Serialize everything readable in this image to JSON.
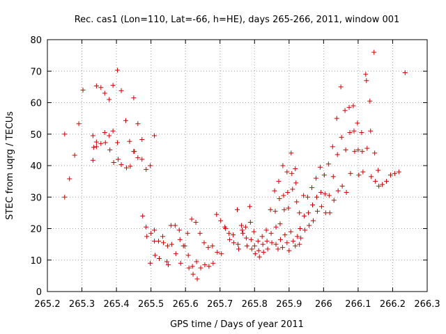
{
  "chart_data": {
    "type": "scatter",
    "title": "Rec. cas1 (Lon=110, Lat=-66, h=HE), days 265-266, 2011, window 001",
    "xlabel": "GPS time / Days of year 2011",
    "ylabel": "STEC from uqrg / TECUs",
    "xlim": [
      265.2,
      266.3
    ],
    "ylim": [
      0,
      80
    ],
    "xticks": [
      265.2,
      265.3,
      265.4,
      265.5,
      265.6,
      265.7,
      265.8,
      265.9,
      266.0,
      266.1,
      266.2,
      266.3
    ],
    "xtick_labels": [
      "265.2",
      "265.3",
      "265.4",
      "265.5",
      "265.6",
      "265.7",
      "265.8",
      "265.9",
      "266",
      "266.1",
      "266.2",
      "266.3"
    ],
    "yticks": [
      0,
      10,
      20,
      30,
      40,
      50,
      60,
      70,
      80
    ],
    "ytick_labels": [
      "0",
      "10",
      "20",
      "30",
      "40",
      "50",
      "60",
      "70",
      "80"
    ],
    "grid": true,
    "marker": "+",
    "color": "#cc0000",
    "points": [
      [
        265.25,
        50.0
      ],
      [
        265.25,
        30.0
      ],
      [
        265.264,
        35.8
      ],
      [
        265.279,
        43.3
      ],
      [
        265.291,
        53.3
      ],
      [
        265.303,
        64.0
      ],
      [
        265.332,
        49.5
      ],
      [
        265.332,
        41.7
      ],
      [
        265.334,
        45.8
      ],
      [
        265.342,
        65.3
      ],
      [
        265.342,
        47.5
      ],
      [
        265.342,
        46.0
      ],
      [
        265.355,
        64.8
      ],
      [
        265.355,
        47.0
      ],
      [
        265.366,
        63.0
      ],
      [
        265.366,
        50.5
      ],
      [
        265.368,
        47.3
      ],
      [
        265.379,
        61.0
      ],
      [
        265.379,
        49.5
      ],
      [
        265.381,
        45.0
      ],
      [
        265.39,
        65.5
      ],
      [
        265.39,
        51.0
      ],
      [
        265.392,
        41.0
      ],
      [
        265.403,
        70.3
      ],
      [
        265.403,
        47.3
      ],
      [
        265.405,
        42.0
      ],
      [
        265.414,
        63.8
      ],
      [
        265.414,
        40.3
      ],
      [
        265.427,
        54.3
      ],
      [
        265.429,
        39.3
      ],
      [
        265.438,
        47.7
      ],
      [
        265.44,
        39.8
      ],
      [
        265.45,
        61.5
      ],
      [
        265.45,
        44.5
      ],
      [
        265.452,
        44.5
      ],
      [
        265.462,
        53.3
      ],
      [
        265.462,
        42.5
      ],
      [
        265.474,
        48.3
      ],
      [
        265.474,
        42.0
      ],
      [
        265.476,
        24.0
      ],
      [
        265.486,
        38.8
      ],
      [
        265.486,
        20.5
      ],
      [
        265.488,
        17.5
      ],
      [
        265.498,
        40.0
      ],
      [
        265.498,
        9.0
      ],
      [
        265.5,
        18.5
      ],
      [
        265.51,
        49.5
      ],
      [
        265.51,
        19.5
      ],
      [
        265.51,
        16.0
      ],
      [
        265.512,
        11.5
      ],
      [
        265.522,
        16.0
      ],
      [
        265.524,
        10.5
      ],
      [
        265.534,
        17.5
      ],
      [
        265.536,
        15.5
      ],
      [
        265.546,
        9.5
      ],
      [
        265.548,
        14.5
      ],
      [
        265.55,
        8.5
      ],
      [
        265.558,
        21.0
      ],
      [
        265.56,
        15.0
      ],
      [
        265.57,
        21.0
      ],
      [
        265.572,
        12.0
      ],
      [
        265.582,
        19.5
      ],
      [
        265.584,
        16.5
      ],
      [
        265.586,
        9.0
      ],
      [
        265.594,
        14.5
      ],
      [
        265.598,
        14.5
      ],
      [
        265.606,
        18.5
      ],
      [
        265.608,
        11.5
      ],
      [
        265.61,
        7.5
      ],
      [
        265.618,
        23.0
      ],
      [
        265.62,
        8.0
      ],
      [
        265.622,
        5.5
      ],
      [
        265.63,
        22.0
      ],
      [
        265.632,
        9.5
      ],
      [
        265.634,
        4.0
      ],
      [
        265.642,
        18.5
      ],
      [
        265.644,
        7.5
      ],
      [
        265.654,
        15.5
      ],
      [
        265.656,
        8.5
      ],
      [
        265.666,
        14.0
      ],
      [
        265.668,
        8.0
      ],
      [
        265.678,
        14.5
      ],
      [
        265.68,
        9.0
      ],
      [
        265.69,
        24.5
      ],
      [
        265.692,
        12.5
      ],
      [
        265.702,
        22.5
      ],
      [
        265.704,
        12.0
      ],
      [
        265.714,
        20.5
      ],
      [
        265.716,
        20.0
      ],
      [
        265.726,
        18.5
      ],
      [
        265.728,
        16.5
      ],
      [
        265.738,
        18.0
      ],
      [
        265.74,
        15.5
      ],
      [
        265.75,
        26.0
      ],
      [
        265.752,
        15.0
      ],
      [
        265.754,
        13.5
      ],
      [
        265.762,
        21.0
      ],
      [
        265.764,
        19.5
      ],
      [
        265.766,
        18.5
      ],
      [
        265.774,
        20.5
      ],
      [
        265.776,
        17.0
      ],
      [
        265.778,
        14.5
      ],
      [
        265.786,
        27.0
      ],
      [
        265.788,
        22.0
      ],
      [
        265.79,
        16.5
      ],
      [
        265.792,
        13.5
      ],
      [
        265.798,
        19.0
      ],
      [
        265.8,
        14.5
      ],
      [
        265.802,
        12.0
      ],
      [
        265.81,
        16.0
      ],
      [
        265.812,
        13.0
      ],
      [
        265.814,
        11.0
      ],
      [
        265.822,
        17.5
      ],
      [
        265.824,
        15.0
      ],
      [
        265.826,
        12.5
      ],
      [
        265.834,
        19.5
      ],
      [
        265.836,
        16.0
      ],
      [
        265.838,
        13.5
      ],
      [
        265.846,
        26.0
      ],
      [
        265.848,
        18.5
      ],
      [
        265.85,
        15.5
      ],
      [
        265.858,
        32.0
      ],
      [
        265.86,
        25.5
      ],
      [
        265.862,
        20.5
      ],
      [
        265.87,
        35.0
      ],
      [
        265.872,
        29.5
      ],
      [
        265.874,
        21.5
      ],
      [
        265.882,
        40.0
      ],
      [
        265.884,
        30.5
      ],
      [
        265.886,
        26.0
      ],
      [
        265.894,
        38.0
      ],
      [
        265.896,
        31.5
      ],
      [
        265.898,
        26.5
      ],
      [
        265.906,
        44.0
      ],
      [
        265.908,
        37.5
      ],
      [
        265.91,
        32.5
      ],
      [
        265.918,
        39.0
      ],
      [
        265.92,
        34.5
      ],
      [
        265.922,
        28.5
      ],
      [
        265.93,
        25.0
      ],
      [
        265.932,
        20.0
      ],
      [
        265.934,
        17.0
      ],
      [
        265.942,
        30.5
      ],
      [
        265.944,
        24.0
      ],
      [
        265.946,
        19.5
      ],
      [
        265.954,
        30.0
      ],
      [
        265.956,
        25.0
      ],
      [
        265.958,
        21.0
      ],
      [
        265.966,
        33.0
      ],
      [
        265.968,
        27.5
      ],
      [
        265.97,
        22.5
      ],
      [
        265.978,
        36.0
      ],
      [
        265.98,
        30.0
      ],
      [
        265.982,
        25.5
      ],
      [
        265.99,
        39.5
      ],
      [
        265.992,
        31.5
      ],
      [
        265.994,
        27.0
      ],
      [
        266.002,
        37.0
      ],
      [
        266.004,
        31.0
      ],
      [
        266.006,
        25.0
      ],
      [
        266.014,
        40.5
      ],
      [
        266.016,
        30.5
      ],
      [
        266.018,
        25.0
      ],
      [
        266.026,
        46.0
      ],
      [
        266.028,
        36.5
      ],
      [
        266.03,
        29.0
      ],
      [
        266.038,
        55.0
      ],
      [
        266.04,
        43.5
      ],
      [
        266.042,
        32.0
      ],
      [
        266.05,
        65.0
      ],
      [
        266.052,
        49.0
      ],
      [
        266.054,
        33.5
      ],
      [
        266.062,
        57.5
      ],
      [
        266.064,
        45.0
      ],
      [
        266.066,
        31.5
      ],
      [
        266.074,
        58.5
      ],
      [
        266.076,
        50.5
      ],
      [
        266.078,
        37.5
      ],
      [
        266.086,
        59.0
      ],
      [
        266.088,
        51.0
      ],
      [
        266.09,
        44.5
      ],
      [
        266.098,
        53.5
      ],
      [
        266.1,
        45.0
      ],
      [
        266.102,
        37.0
      ],
      [
        266.11,
        50.5
      ],
      [
        266.112,
        44.5
      ],
      [
        266.114,
        38.0
      ],
      [
        266.122,
        69.0
      ],
      [
        266.124,
        67.0
      ],
      [
        266.126,
        45.5
      ],
      [
        266.134,
        60.5
      ],
      [
        266.136,
        51.0
      ],
      [
        266.138,
        36.5
      ],
      [
        266.146,
        76.0
      ],
      [
        266.148,
        44.0
      ],
      [
        266.15,
        35.0
      ],
      [
        266.158,
        38.5
      ],
      [
        266.16,
        33.5
      ],
      [
        266.17,
        34.0
      ],
      [
        266.182,
        35.0
      ],
      [
        266.194,
        37.0
      ],
      [
        266.206,
        37.5
      ],
      [
        266.218,
        38.0
      ],
      [
        266.236,
        69.5
      ],
      [
        265.862,
        15.0
      ],
      [
        265.868,
        13.5
      ],
      [
        265.875,
        16.5
      ],
      [
        265.881,
        14.0
      ],
      [
        265.888,
        18.0
      ],
      [
        265.894,
        15.5
      ],
      [
        265.9,
        13.0
      ],
      [
        265.905,
        19.0
      ],
      [
        265.912,
        16.0
      ],
      [
        265.918,
        14.5
      ],
      [
        265.924,
        17.5
      ],
      [
        265.93,
        15.0
      ]
    ]
  }
}
